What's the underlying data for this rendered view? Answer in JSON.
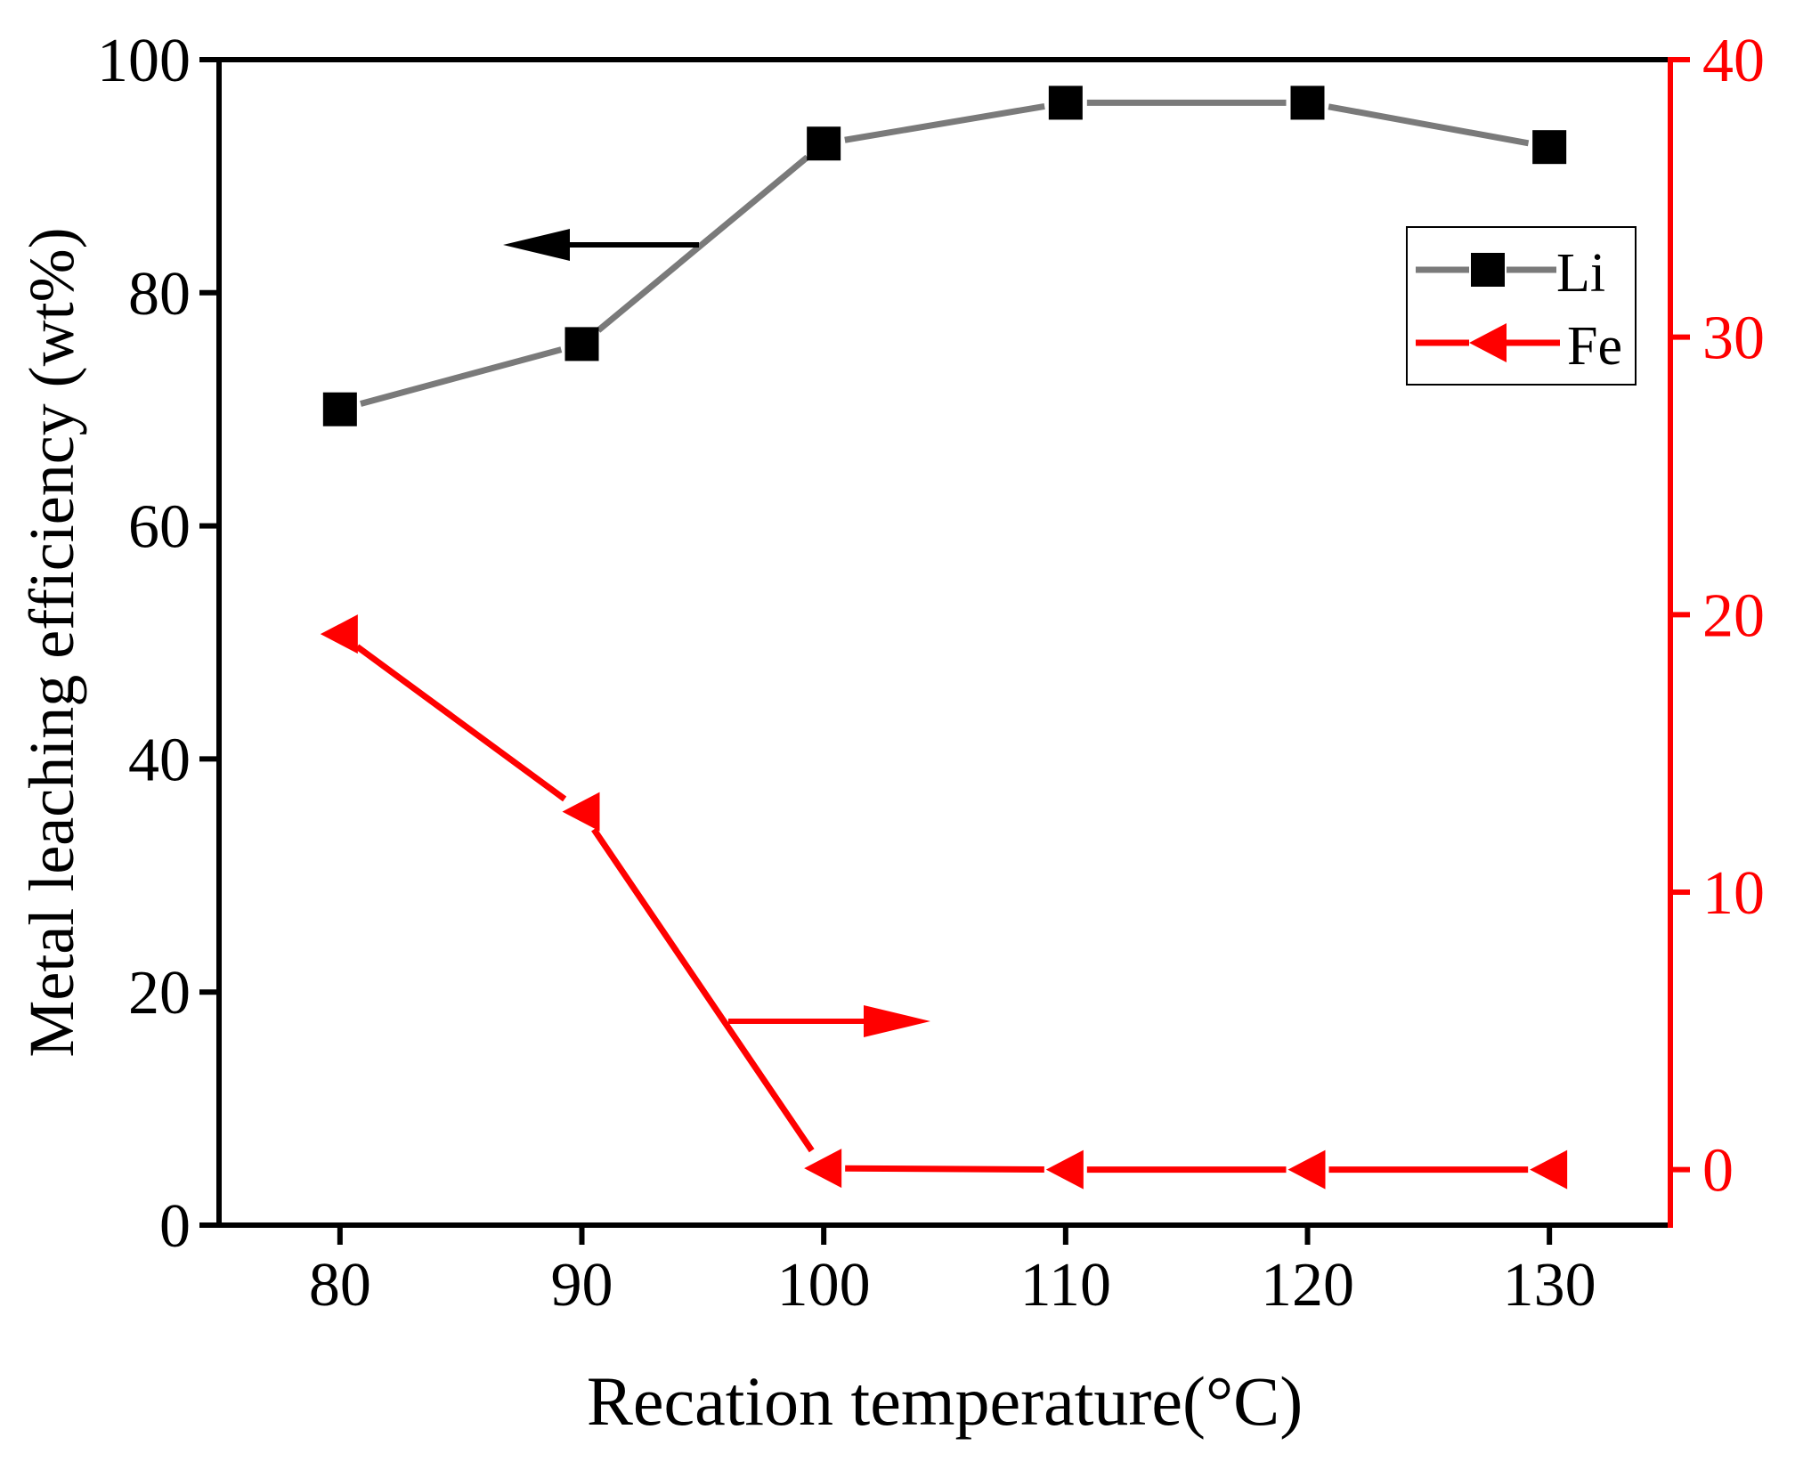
{
  "chart_data": {
    "type": "line",
    "title": "",
    "xlabel": "Recation temperature(°C)",
    "ylabel": "Metal leaching efficiency (wt%)",
    "x": [
      80,
      90,
      100,
      110,
      120,
      130
    ],
    "xlim": [
      75,
      135
    ],
    "ylim": [
      0,
      100
    ],
    "y2lim": [
      -2,
      40
    ],
    "x_ticks": [
      "80",
      "90",
      "100",
      "110",
      "120",
      "130"
    ],
    "y_ticks": [
      "0",
      "20",
      "40",
      "60",
      "80",
      "100"
    ],
    "y2_ticks": [
      "0",
      "10",
      "20",
      "30",
      "40"
    ],
    "y2_tick_values": [
      0,
      10,
      20,
      30,
      40
    ],
    "grid": false,
    "legend_position": "top-right",
    "series": [
      {
        "name": "Li",
        "axis": "left",
        "marker": "square",
        "values": [
          70,
          75.6,
          92.8,
          96.3,
          96.3,
          92.5
        ],
        "line_color": "#7a7a7a",
        "marker_color": "#000000"
      },
      {
        "name": "Fe",
        "axis": "right",
        "marker": "left-triangle",
        "values": [
          19.3,
          12.9,
          0.05,
          0,
          0,
          0
        ],
        "line_color": "#ff0000",
        "marker_color": "#ff0000"
      }
    ],
    "annotations": [
      {
        "type": "arrow",
        "direction": "left",
        "meaning": "Li series uses left axis",
        "color": "#000000"
      },
      {
        "type": "arrow",
        "direction": "right",
        "meaning": "Fe series uses right axis",
        "color": "#ff0000"
      }
    ],
    "colors": {
      "left_axis": "#000000",
      "right_axis": "#ff0000"
    }
  }
}
